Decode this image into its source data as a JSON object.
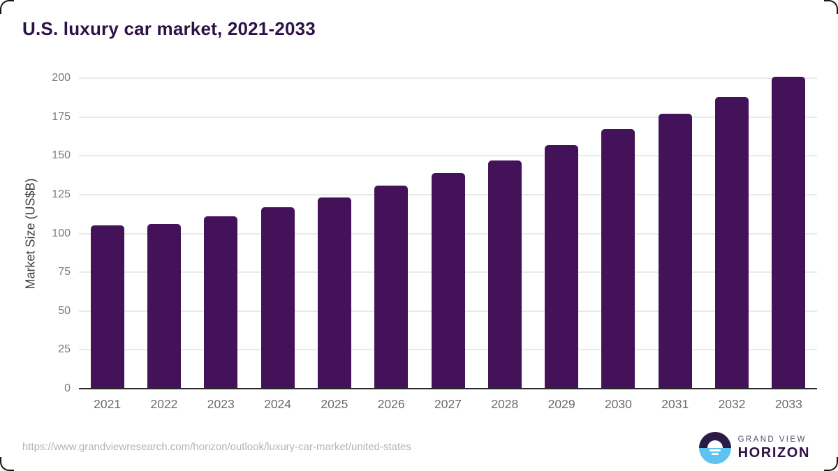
{
  "title": "U.S. luxury car market, 2021-2033",
  "chart_data": {
    "type": "bar",
    "categories": [
      "2021",
      "2022",
      "2023",
      "2024",
      "2025",
      "2026",
      "2027",
      "2028",
      "2029",
      "2030",
      "2031",
      "2032",
      "2033"
    ],
    "values": [
      105,
      106,
      111,
      117,
      123,
      131,
      139,
      147,
      157,
      167,
      177,
      188,
      201
    ],
    "title": "U.S. luxury car market, 2021-2033",
    "xlabel": "",
    "ylabel": "Market Size (US$B)",
    "ylim": [
      0,
      200
    ],
    "yticks": [
      0,
      25,
      50,
      75,
      100,
      125,
      150,
      175,
      200
    ],
    "grid": "horizontal",
    "legend": "none",
    "bar_color": "#441259"
  },
  "footer": {
    "source_url": "https://www.grandviewresearch.com/horizon/outlook/luxury-car-market/united-states"
  },
  "logo": {
    "line1": "GRAND VIEW",
    "line2": "HORIZON"
  },
  "colors": {
    "title_text": "#2d1245",
    "bar": "#441259",
    "gridline": "#e9e9e9",
    "axis_line": "#2a2a2a",
    "tick_text": "#7b7b7b",
    "url_text": "#b4b4b4",
    "logo_blue": "#5fc3f1",
    "logo_purple": "#2c1b47"
  }
}
